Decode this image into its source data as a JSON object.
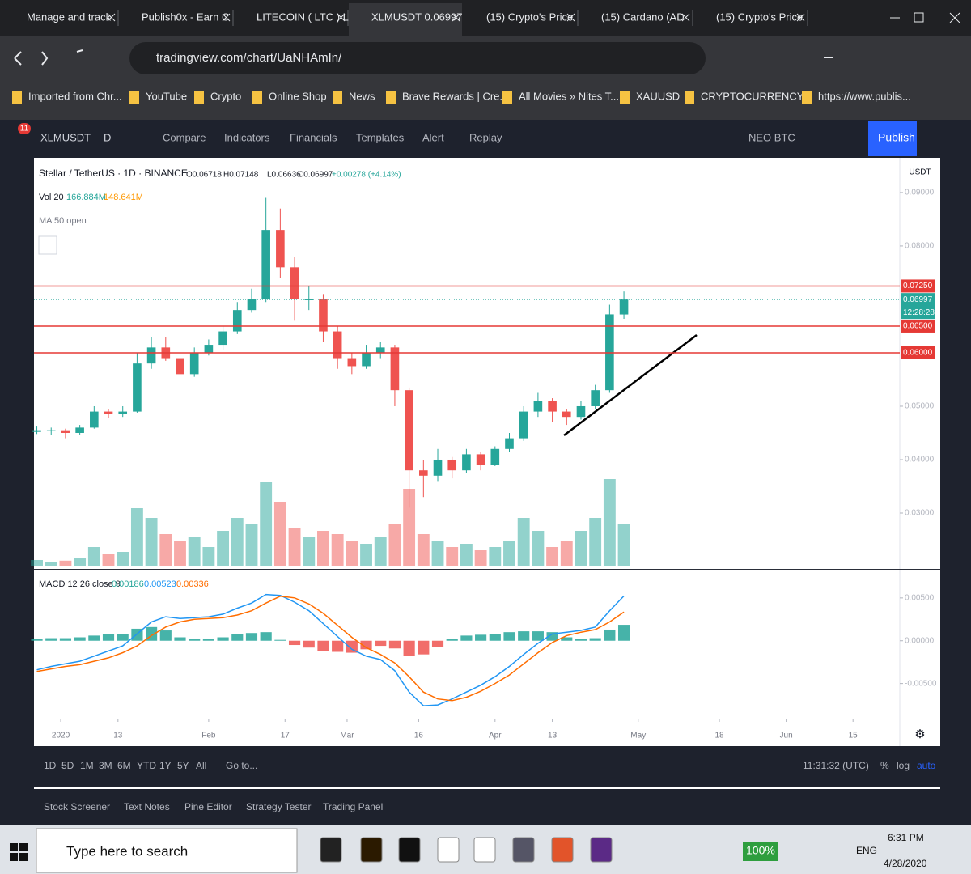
{
  "browser": {
    "tabs": [
      "Manage and track",
      "Publish0x - Earn C",
      "LITECOIN ( LTC ) L",
      "XLMUSDT 0.06997",
      "(15) Crypto's Price",
      "(15) Cardano (AD",
      "(15) Crypto's Price"
    ],
    "url": "tradingview.com/chart/UaNHAmIn/",
    "bookmarks": [
      "Imported from Chr...",
      "YouTube",
      "Crypto",
      "Online Shop",
      "News",
      "Brave Rewards | Cre...",
      "All Movies » Nites T...",
      "XAUUSD",
      "CRYPTOCURRENCY...",
      "https://www.publis..."
    ]
  },
  "toolbar": {
    "badge": "11",
    "symbol": "XLMUSDT",
    "interval": "D",
    "items": [
      "Compare",
      "Indicators",
      "Financials",
      "Templates",
      "Alert",
      "Replay"
    ],
    "pair": "NEO BTC",
    "publish": "Publish"
  },
  "chart_data": [
    {
      "type": "candlestick",
      "title": "Stellar / TetherUS · 1D · BINANCE",
      "ohlc_legend": [
        "O0.06718",
        "H0.07148",
        "L0.06636",
        "C0.06997",
        "+0.00278 (+4.14%)"
      ],
      "volume_legend": {
        "label": "Vol 20",
        "values": [
          "166.884M",
          "148.641M"
        ]
      },
      "ma_legend": "MA 50 open",
      "axis_unit": "USDT",
      "up_color": "#26a69a",
      "down_color": "#ef5350",
      "x": [
        -5,
        -2,
        1,
        4,
        7,
        10,
        13,
        16,
        19,
        22,
        25,
        28,
        31,
        34,
        37,
        40,
        43,
        46,
        49,
        52,
        55,
        58,
        61,
        64,
        67,
        70,
        73,
        76,
        79,
        82,
        85,
        88,
        91,
        94,
        97,
        100,
        103,
        106,
        109,
        112,
        115,
        118
      ],
      "open": [
        0.0452,
        0.0455,
        0.0455,
        0.045,
        0.046,
        0.049,
        0.0485,
        0.049,
        0.058,
        0.061,
        0.059,
        0.056,
        0.06,
        0.0615,
        0.064,
        0.068,
        0.07,
        0.083,
        0.076,
        0.07,
        0.07,
        0.064,
        0.059,
        0.0575,
        0.06,
        0.061,
        0.053,
        0.038,
        0.037,
        0.04,
        0.038,
        0.041,
        0.039,
        0.042,
        0.044,
        0.049,
        0.051,
        0.049,
        0.048,
        0.05,
        0.053,
        0.06718
      ],
      "high": [
        0.0462,
        0.046,
        0.0458,
        0.0465,
        0.05,
        0.0495,
        0.05,
        0.06,
        0.063,
        0.063,
        0.0595,
        0.061,
        0.0625,
        0.065,
        0.0695,
        0.072,
        0.089,
        0.087,
        0.078,
        0.0725,
        0.071,
        0.065,
        0.06,
        0.0615,
        0.062,
        0.0615,
        0.0535,
        0.04,
        0.042,
        0.0405,
        0.042,
        0.0415,
        0.0425,
        0.045,
        0.05,
        0.0525,
        0.0515,
        0.0495,
        0.051,
        0.054,
        0.069,
        0.07148
      ],
      "low": [
        0.0448,
        0.0446,
        0.044,
        0.0447,
        0.0458,
        0.0478,
        0.048,
        0.0488,
        0.057,
        0.0585,
        0.055,
        0.0555,
        0.0595,
        0.0605,
        0.0635,
        0.0675,
        0.0695,
        0.074,
        0.066,
        0.068,
        0.062,
        0.057,
        0.056,
        0.057,
        0.059,
        0.05,
        0.031,
        0.033,
        0.036,
        0.0365,
        0.0375,
        0.038,
        0.0388,
        0.0415,
        0.0435,
        0.048,
        0.047,
        0.0465,
        0.0475,
        0.0495,
        0.0525,
        0.06636
      ],
      "close": [
        0.0455,
        0.0455,
        0.045,
        0.046,
        0.049,
        0.0485,
        0.049,
        0.058,
        0.061,
        0.059,
        0.056,
        0.06,
        0.0615,
        0.064,
        0.068,
        0.07,
        0.083,
        0.076,
        0.07,
        0.07,
        0.064,
        0.059,
        0.0575,
        0.06,
        0.061,
        0.053,
        0.038,
        0.037,
        0.04,
        0.038,
        0.041,
        0.039,
        0.042,
        0.044,
        0.049,
        0.051,
        0.049,
        0.048,
        0.05,
        0.053,
        0.0672,
        0.06997
      ],
      "volume": [
        20,
        15,
        18,
        25,
        60,
        40,
        45,
        180,
        150,
        100,
        80,
        90,
        60,
        110,
        150,
        130,
        260,
        200,
        120,
        90,
        110,
        100,
        80,
        70,
        90,
        130,
        240,
        100,
        80,
        60,
        70,
        50,
        60,
        80,
        150,
        110,
        60,
        80,
        110,
        150,
        270,
        130
      ],
      "volume_ylim": [
        0,
        400
      ],
      "xlim": [
        -5.6,
        175.8
      ],
      "xticks": [
        {
          "value": 0,
          "label": "2020"
        },
        {
          "value": 12,
          "label": "13"
        },
        {
          "value": 31,
          "label": "Feb"
        },
        {
          "value": 47,
          "label": "17"
        },
        {
          "value": 60,
          "label": "Mar"
        },
        {
          "value": 75,
          "label": "16"
        },
        {
          "value": 91,
          "label": "Apr"
        },
        {
          "value": 103,
          "label": "13"
        },
        {
          "value": 121,
          "label": "May"
        },
        {
          "value": 138,
          "label": "18"
        },
        {
          "value": 152,
          "label": "Jun"
        },
        {
          "value": 166,
          "label": "15"
        }
      ],
      "ylim": [
        0.01955,
        0.0965
      ],
      "yticks": [
        {
          "value": 0.09,
          "label": "0.09000"
        },
        {
          "value": 0.08,
          "label": "0.08000"
        },
        {
          "value": 0.05,
          "label": "0.05000"
        },
        {
          "value": 0.04,
          "label": "0.04000"
        },
        {
          "value": 0.03,
          "label": "0.03000"
        }
      ],
      "price_lines": [
        {
          "value": 0.0725,
          "label": "0.07250",
          "color": "#e53935"
        },
        {
          "value": 0.065,
          "label": "0.06500",
          "color": "#e53935"
        },
        {
          "value": 0.06,
          "label": "0.06000",
          "color": "#e53935"
        }
      ],
      "current_price": {
        "value": 0.06997,
        "label": "0.06997",
        "countdown": "12:28:28",
        "color": "#26a69a"
      }
    },
    {
      "type": "macd",
      "legend": "MACD 12 26 close 9",
      "legend_values": [
        "0.00186",
        "0.00523",
        "0.00336"
      ],
      "x": [
        -5,
        -2,
        1,
        4,
        7,
        10,
        13,
        16,
        19,
        22,
        25,
        28,
        31,
        34,
        37,
        40,
        43,
        46,
        49,
        52,
        55,
        58,
        61,
        64,
        67,
        70,
        73,
        76,
        79,
        82,
        85,
        88,
        91,
        94,
        97,
        100,
        103,
        106,
        109,
        112,
        115,
        118
      ],
      "ylim": [
        -0.0091,
        0.0082
      ],
      "yticks": [
        {
          "value": 0.005,
          "label": "0.00500"
        },
        {
          "value": 0,
          "label": "0.00000"
        },
        {
          "value": -0.005,
          "label": "-0.00500"
        }
      ],
      "series": [
        {
          "kind": "histogram",
          "color": "#26a69a",
          "negative_color": "#ef5350",
          "values": [
            0.0002,
            0.0003,
            0.0003,
            0.0004,
            0.0006,
            0.0008,
            0.0008,
            0.0014,
            0.0016,
            0.0012,
            0.0004,
            0.0002,
            0.0002,
            0.0004,
            0.0008,
            0.0009,
            0.001,
            0.0001,
            -0.0005,
            -0.0008,
            -0.0012,
            -0.0013,
            -0.0014,
            -0.001,
            -0.0006,
            -0.0009,
            -0.0018,
            -0.0016,
            -0.0007,
            0.0002,
            0.0006,
            0.0007,
            0.0008,
            0.001,
            0.0011,
            0.0011,
            0.001,
            0.0004,
            0.0002,
            0.0003,
            0.0013,
            0.00186
          ]
        },
        {
          "kind": "line",
          "color": "#2196f3",
          "values": [
            -0.0034,
            -0.003,
            -0.0027,
            -0.0024,
            -0.0018,
            -0.0012,
            -0.0006,
            0.0008,
            0.0022,
            0.0028,
            0.0026,
            0.0027,
            0.0028,
            0.0031,
            0.0038,
            0.0044,
            0.0054,
            0.0053,
            0.0045,
            0.0035,
            0.002,
            0.0005,
            -0.001,
            -0.0018,
            -0.0022,
            -0.0035,
            -0.006,
            -0.0076,
            -0.0075,
            -0.0068,
            -0.006,
            -0.0052,
            -0.0042,
            -0.003,
            -0.0016,
            -0.0003,
            0.0008,
            0.001,
            0.0012,
            0.0016,
            0.0035,
            0.00523
          ]
        },
        {
          "kind": "line",
          "color": "#ff6d00",
          "values": [
            -0.0036,
            -0.0033,
            -0.003,
            -0.0028,
            -0.0024,
            -0.002,
            -0.0014,
            -0.0006,
            0.0006,
            0.0016,
            0.0022,
            0.0025,
            0.0026,
            0.0027,
            0.003,
            0.0035,
            0.0044,
            0.0052,
            0.005,
            0.0043,
            0.0032,
            0.0018,
            0.0004,
            -0.0008,
            -0.0016,
            -0.0026,
            -0.0042,
            -0.006,
            -0.0068,
            -0.007,
            -0.0066,
            -0.0059,
            -0.005,
            -0.004,
            -0.0027,
            -0.0014,
            -0.0002,
            0.0006,
            0.001,
            0.0013,
            0.0022,
            0.00336
          ]
        }
      ]
    }
  ],
  "bottom": {
    "ranges": [
      "1D",
      "5D",
      "1M",
      "3M",
      "6M",
      "YTD",
      "1Y",
      "5Y",
      "All"
    ],
    "goto": "Go to...",
    "clock": "11:31:32 (UTC)",
    "scale": [
      "%",
      "log",
      "auto"
    ],
    "panels": [
      "Stock Screener",
      "Text Notes",
      "Pine Editor",
      "Strategy Tester",
      "Trading Panel"
    ]
  },
  "taskbar": {
    "search": "Type here to search",
    "battery": "100%",
    "lang": "ENG",
    "time": "6:31 PM",
    "date": "4/28/2020"
  }
}
